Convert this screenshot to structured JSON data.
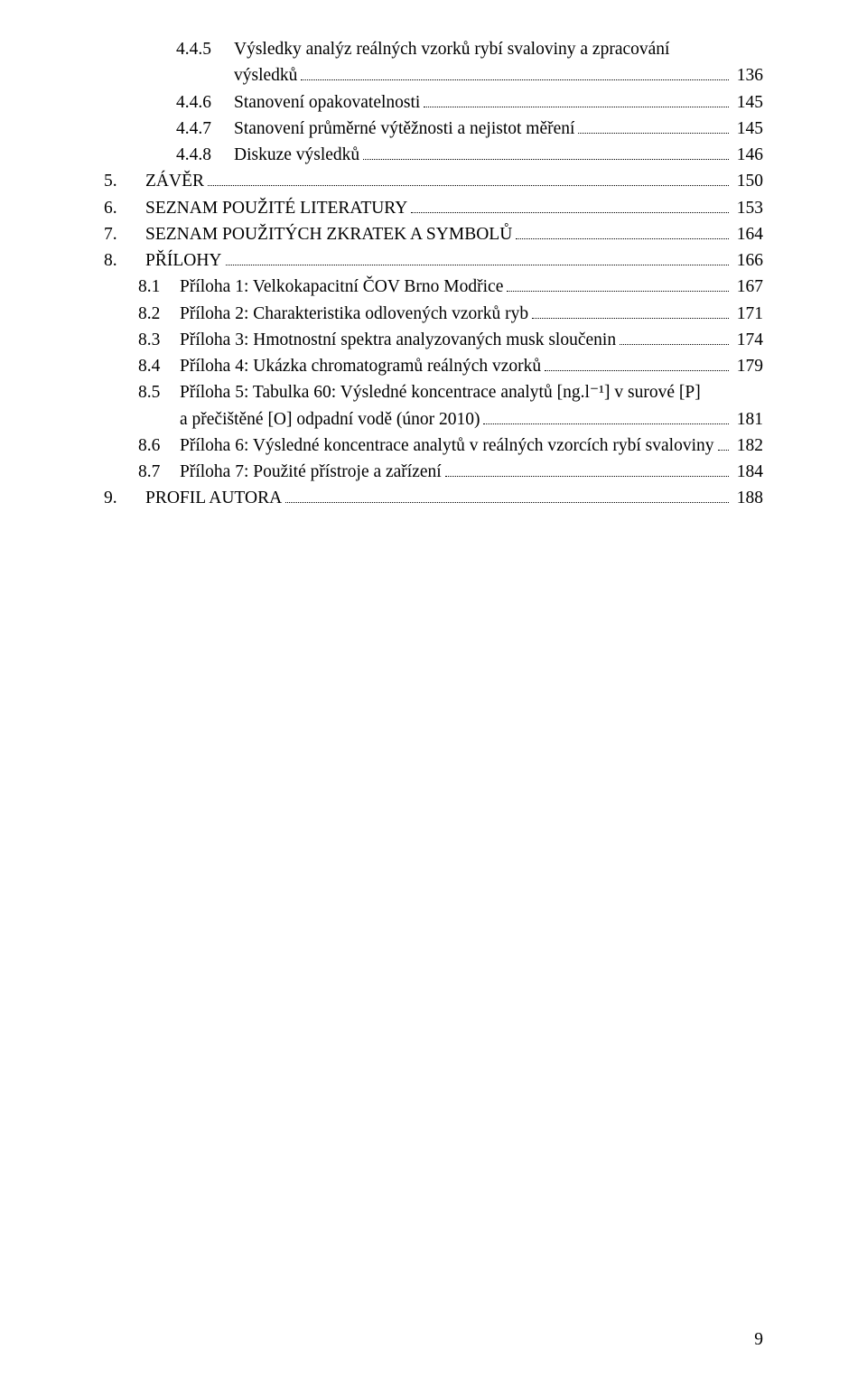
{
  "toc": [
    {
      "indent": 2,
      "num": "4.4.5",
      "title_lines": [
        "Výsledky analýz reálných vzorků rybí svaloviny a zpracování",
        "výsledků"
      ],
      "page": "136"
    },
    {
      "indent": 2,
      "num": "4.4.6",
      "title_lines": [
        "Stanovení opakovatelnosti"
      ],
      "page": "145"
    },
    {
      "indent": 2,
      "num": "4.4.7",
      "title_lines": [
        "Stanovení průměrné výtěžnosti a nejistot měření"
      ],
      "page": "145"
    },
    {
      "indent": 2,
      "num": "4.4.8",
      "title_lines": [
        "Diskuze výsledků"
      ],
      "page": "146"
    },
    {
      "indent": 0,
      "num": "5.",
      "title_lines": [
        "ZÁVĚR"
      ],
      "page": "150"
    },
    {
      "indent": 0,
      "num": "6.",
      "title_lines": [
        "SEZNAM POUŽITÉ LITERATURY"
      ],
      "page": "153"
    },
    {
      "indent": 0,
      "num": "7.",
      "title_lines": [
        "SEZNAM POUŽITÝCH ZKRATEK A SYMBOLŮ"
      ],
      "page": "164"
    },
    {
      "indent": 0,
      "num": "8.",
      "title_lines": [
        "PŘÍLOHY"
      ],
      "page": "166"
    },
    {
      "indent": 1,
      "num": "8.1",
      "title_lines": [
        "Příloha 1: Velkokapacitní ČOV Brno Modřice"
      ],
      "page": "167"
    },
    {
      "indent": 1,
      "num": "8.2",
      "title_lines": [
        "Příloha 2: Charakteristika odlovených vzorků ryb"
      ],
      "page": "171"
    },
    {
      "indent": 1,
      "num": "8.3",
      "title_lines": [
        "Příloha 3: Hmotnostní spektra analyzovaných musk sloučenin"
      ],
      "page": "174"
    },
    {
      "indent": 1,
      "num": "8.4",
      "title_lines": [
        "Příloha 4: Ukázka chromatogramů reálných vzorků"
      ],
      "page": "179"
    },
    {
      "indent": 1,
      "num": "8.5",
      "title_lines": [
        "Příloha 5: Tabulka 60: Výsledné koncentrace analytů [ng.l⁻¹] v surové [P]",
        "a přečištěné [O] odpadní vodě (únor 2010)"
      ],
      "page": "181"
    },
    {
      "indent": 1,
      "num": "8.6",
      "title_lines": [
        "Příloha 6: Výsledné koncentrace analytů v reálných vzorcích rybí svaloviny"
      ],
      "page": "182"
    },
    {
      "indent": 1,
      "num": "8.7",
      "title_lines": [
        "Příloha 7: Použité přístroje a zařízení"
      ],
      "page": "184"
    },
    {
      "indent": 0,
      "num": "9.",
      "title_lines": [
        "PROFIL AUTORA"
      ],
      "page": "188"
    }
  ],
  "page_number": "9"
}
